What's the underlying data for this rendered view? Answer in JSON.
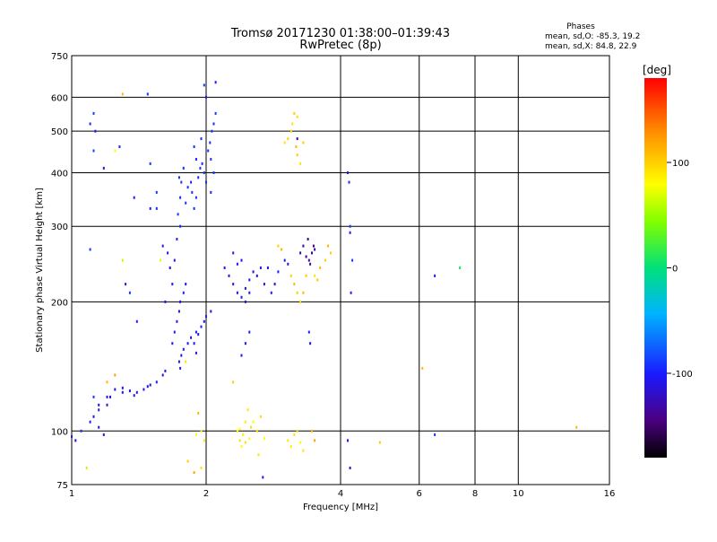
{
  "chart_data": {
    "type": "scatter",
    "title": "Tromsø 20171230 01:38:00–01:39:43",
    "subtitle": "RwPretec (8p)",
    "stats": {
      "heading": "Phases",
      "line_o": "mean, sd,O: -85.3, 19.2",
      "line_x": "mean, sd,X: 84.8, 22.9"
    },
    "xlabel": "Frequency [MHz]",
    "ylabel": "Stationary phase Virtual Height [km]",
    "xscale": "log",
    "yscale": "log",
    "xlim": [
      1,
      16
    ],
    "ylim": [
      75,
      750
    ],
    "xticks": [
      1,
      2,
      4,
      6,
      8,
      10,
      16
    ],
    "xtick_labels": [
      "1",
      "2",
      "4",
      "6",
      "8",
      "10",
      "16"
    ],
    "yticks": [
      75,
      100,
      200,
      300,
      400,
      500,
      600,
      750
    ],
    "ytick_labels": [
      "75",
      "100",
      "200",
      "300",
      "400",
      "500",
      "600",
      "750"
    ],
    "grid": true,
    "colorbar": {
      "label": "[deg]",
      "min": -180,
      "max": 180,
      "ticks": [
        100,
        0,
        -100
      ],
      "tick_labels": [
        "100",
        "0",
        "-100"
      ]
    },
    "points": [
      [
        1.0,
        97,
        -100
      ],
      [
        1.02,
        95,
        -110
      ],
      [
        1.05,
        100,
        -90
      ],
      [
        1.08,
        82,
        60
      ],
      [
        1.1,
        105,
        -100
      ],
      [
        1.12,
        108,
        -110
      ],
      [
        1.15,
        102,
        -110
      ],
      [
        1.18,
        98,
        -100
      ],
      [
        1.12,
        120,
        -90
      ],
      [
        1.15,
        112,
        -100
      ],
      [
        1.2,
        115,
        -110
      ],
      [
        1.1,
        265,
        -90
      ],
      [
        1.1,
        520,
        -95
      ],
      [
        1.12,
        550,
        -90
      ],
      [
        1.13,
        500,
        -100
      ],
      [
        1.12,
        450,
        -90
      ],
      [
        1.18,
        410,
        -110
      ],
      [
        1.25,
        450,
        80
      ],
      [
        1.3,
        610,
        110
      ],
      [
        1.28,
        460,
        -95
      ],
      [
        1.38,
        350,
        -100
      ],
      [
        1.3,
        250,
        60
      ],
      [
        1.32,
        220,
        -100
      ],
      [
        1.35,
        210,
        -90
      ],
      [
        1.4,
        180,
        -100
      ],
      [
        1.5,
        330,
        -100
      ],
      [
        1.48,
        610,
        -90
      ],
      [
        1.5,
        420,
        -90
      ],
      [
        1.55,
        330,
        -95
      ],
      [
        1.55,
        360,
        -90
      ],
      [
        1.6,
        270,
        -100
      ],
      [
        1.58,
        250,
        70
      ],
      [
        1.62,
        200,
        -100
      ],
      [
        1.15,
        115,
        -110
      ],
      [
        1.2,
        120,
        -110
      ],
      [
        1.25,
        125,
        -110
      ],
      [
        1.3,
        126,
        -110
      ],
      [
        1.35,
        124,
        -110
      ],
      [
        1.4,
        123,
        -110
      ],
      [
        1.45,
        125,
        -100
      ],
      [
        1.48,
        127,
        -110
      ],
      [
        1.5,
        128,
        -110
      ],
      [
        1.55,
        130,
        -100
      ],
      [
        1.6,
        135,
        -110
      ],
      [
        1.62,
        138,
        -100
      ],
      [
        1.25,
        135,
        120
      ],
      [
        1.2,
        130,
        110
      ],
      [
        1.22,
        120,
        -100
      ],
      [
        1.3,
        123,
        -105
      ],
      [
        1.38,
        121,
        -105
      ],
      [
        1.68,
        160,
        -100
      ],
      [
        1.7,
        170,
        -110
      ],
      [
        1.72,
        180,
        -100
      ],
      [
        1.74,
        190,
        -110
      ],
      [
        1.75,
        200,
        -100
      ],
      [
        1.78,
        210,
        -100
      ],
      [
        1.8,
        220,
        -110
      ],
      [
        1.68,
        220,
        -100
      ],
      [
        1.66,
        240,
        -110
      ],
      [
        1.64,
        260,
        -100
      ],
      [
        1.7,
        250,
        -110
      ],
      [
        1.72,
        280,
        -95
      ],
      [
        1.75,
        300,
        -95
      ],
      [
        1.73,
        320,
        -90
      ],
      [
        1.75,
        350,
        -95
      ],
      [
        1.76,
        380,
        -90
      ],
      [
        1.74,
        390,
        -95
      ],
      [
        1.78,
        410,
        -95
      ],
      [
        1.8,
        340,
        -90
      ],
      [
        1.82,
        370,
        -90
      ],
      [
        1.85,
        380,
        -95
      ],
      [
        1.86,
        360,
        -90
      ],
      [
        1.88,
        330,
        -95
      ],
      [
        1.9,
        350,
        -90
      ],
      [
        1.92,
        390,
        -95
      ],
      [
        1.94,
        410,
        -90
      ],
      [
        1.96,
        420,
        -95
      ],
      [
        1.98,
        400,
        -90
      ],
      [
        2.0,
        380,
        -95
      ],
      [
        2.02,
        450,
        -90
      ],
      [
        2.04,
        470,
        -95
      ],
      [
        2.06,
        500,
        -90
      ],
      [
        2.08,
        520,
        -95
      ],
      [
        2.1,
        550,
        -90
      ],
      [
        2.0,
        600,
        -100
      ],
      [
        1.98,
        640,
        -90
      ],
      [
        2.1,
        650,
        -100
      ],
      [
        1.9,
        430,
        -95
      ],
      [
        1.88,
        460,
        -90
      ],
      [
        1.95,
        480,
        -95
      ],
      [
        2.05,
        430,
        -90
      ],
      [
        2.05,
        360,
        -95
      ],
      [
        2.08,
        400,
        -90
      ],
      [
        1.82,
        160,
        -100
      ],
      [
        1.85,
        165,
        -110
      ],
      [
        1.88,
        160,
        -105
      ],
      [
        1.9,
        170,
        -100
      ],
      [
        1.92,
        168,
        -110
      ],
      [
        1.95,
        175,
        -100
      ],
      [
        1.98,
        180,
        -110
      ],
      [
        2.0,
        185,
        -100
      ],
      [
        2.05,
        190,
        -110
      ],
      [
        1.78,
        155,
        -100
      ],
      [
        1.76,
        150,
        -110
      ],
      [
        1.74,
        145,
        -110
      ],
      [
        1.75,
        140,
        -110
      ],
      [
        1.8,
        145,
        90
      ],
      [
        1.9,
        152,
        -100
      ],
      [
        1.92,
        110,
        110
      ],
      [
        1.95,
        100,
        80
      ],
      [
        1.98,
        95,
        90
      ],
      [
        1.9,
        98,
        80
      ],
      [
        1.82,
        85,
        100
      ],
      [
        1.88,
        80,
        120
      ],
      [
        1.95,
        82,
        90
      ],
      [
        2.2,
        240,
        -100
      ],
      [
        2.25,
        230,
        -110
      ],
      [
        2.3,
        220,
        -100
      ],
      [
        2.35,
        210,
        -110
      ],
      [
        2.4,
        205,
        -100
      ],
      [
        2.45,
        215,
        -110
      ],
      [
        2.5,
        225,
        -100
      ],
      [
        2.55,
        235,
        -110
      ],
      [
        2.35,
        245,
        -100
      ],
      [
        2.4,
        250,
        -110
      ],
      [
        2.3,
        260,
        -100
      ],
      [
        2.45,
        200,
        -110
      ],
      [
        2.5,
        210,
        -100
      ],
      [
        2.6,
        230,
        -110
      ],
      [
        2.7,
        220,
        -110
      ],
      [
        2.65,
        240,
        -100
      ],
      [
        2.75,
        240,
        -110
      ],
      [
        2.8,
        210,
        -100
      ],
      [
        2.85,
        220,
        -110
      ],
      [
        2.9,
        235,
        -100
      ],
      [
        2.4,
        150,
        -100
      ],
      [
        2.45,
        160,
        -110
      ],
      [
        2.5,
        170,
        -100
      ],
      [
        2.3,
        130,
        100
      ],
      [
        2.35,
        100,
        80
      ],
      [
        2.38,
        95,
        90
      ],
      [
        2.4,
        92,
        80
      ],
      [
        2.42,
        98,
        85
      ],
      [
        2.45,
        94,
        90
      ],
      [
        2.5,
        96,
        80
      ],
      [
        2.52,
        102,
        95
      ],
      [
        2.55,
        105,
        80
      ],
      [
        2.6,
        100,
        90
      ],
      [
        2.65,
        108,
        95
      ],
      [
        2.45,
        105,
        85
      ],
      [
        2.48,
        112,
        90
      ],
      [
        2.38,
        101,
        80
      ],
      [
        2.62,
        88,
        90
      ],
      [
        2.68,
        78,
        -100
      ],
      [
        2.7,
        96,
        80
      ],
      [
        2.9,
        270,
        100
      ],
      [
        2.95,
        265,
        110
      ],
      [
        3.0,
        250,
        -100
      ],
      [
        3.05,
        245,
        -110
      ],
      [
        3.1,
        230,
        100
      ],
      [
        3.15,
        220,
        110
      ],
      [
        3.2,
        210,
        100
      ],
      [
        3.25,
        200,
        95
      ],
      [
        3.3,
        210,
        110
      ],
      [
        3.35,
        230,
        100
      ],
      [
        3.0,
        470,
        90
      ],
      [
        3.05,
        480,
        100
      ],
      [
        3.1,
        500,
        95
      ],
      [
        3.12,
        520,
        90
      ],
      [
        3.15,
        550,
        100
      ],
      [
        3.2,
        540,
        95
      ],
      [
        3.18,
        460,
        110
      ],
      [
        3.2,
        440,
        100
      ],
      [
        3.25,
        420,
        90
      ],
      [
        3.3,
        470,
        100
      ],
      [
        3.2,
        480,
        -130
      ],
      [
        3.25,
        260,
        -130
      ],
      [
        3.3,
        270,
        -130
      ],
      [
        3.35,
        255,
        -140
      ],
      [
        3.4,
        250,
        -130
      ],
      [
        3.45,
        260,
        -130
      ],
      [
        3.48,
        270,
        -140
      ],
      [
        3.5,
        265,
        -130
      ],
      [
        3.42,
        245,
        -130
      ],
      [
        3.38,
        280,
        -135
      ],
      [
        3.5,
        230,
        90
      ],
      [
        3.55,
        225,
        100
      ],
      [
        3.6,
        240,
        110
      ],
      [
        3.7,
        250,
        100
      ],
      [
        3.75,
        270,
        110
      ],
      [
        3.8,
        260,
        100
      ],
      [
        3.05,
        95,
        90
      ],
      [
        3.1,
        92,
        85
      ],
      [
        3.15,
        98,
        90
      ],
      [
        3.2,
        100,
        95
      ],
      [
        3.25,
        94,
        80
      ],
      [
        3.3,
        90,
        90
      ],
      [
        3.45,
        100,
        110
      ],
      [
        3.5,
        95,
        120
      ],
      [
        3.4,
        170,
        -100
      ],
      [
        3.42,
        160,
        -110
      ],
      [
        4.15,
        400,
        -100
      ],
      [
        4.18,
        380,
        -95
      ],
      [
        4.2,
        300,
        -90
      ],
      [
        4.22,
        210,
        -100
      ],
      [
        4.25,
        250,
        -90
      ],
      [
        4.2,
        290,
        -100
      ],
      [
        4.15,
        95,
        -100
      ],
      [
        4.2,
        82,
        -110
      ],
      [
        4.9,
        94,
        100
      ],
      [
        6.1,
        140,
        110
      ],
      [
        6.5,
        230,
        -100
      ],
      [
        6.5,
        98,
        -90
      ],
      [
        7.4,
        240,
        10
      ],
      [
        13.5,
        102,
        110
      ]
    ]
  }
}
